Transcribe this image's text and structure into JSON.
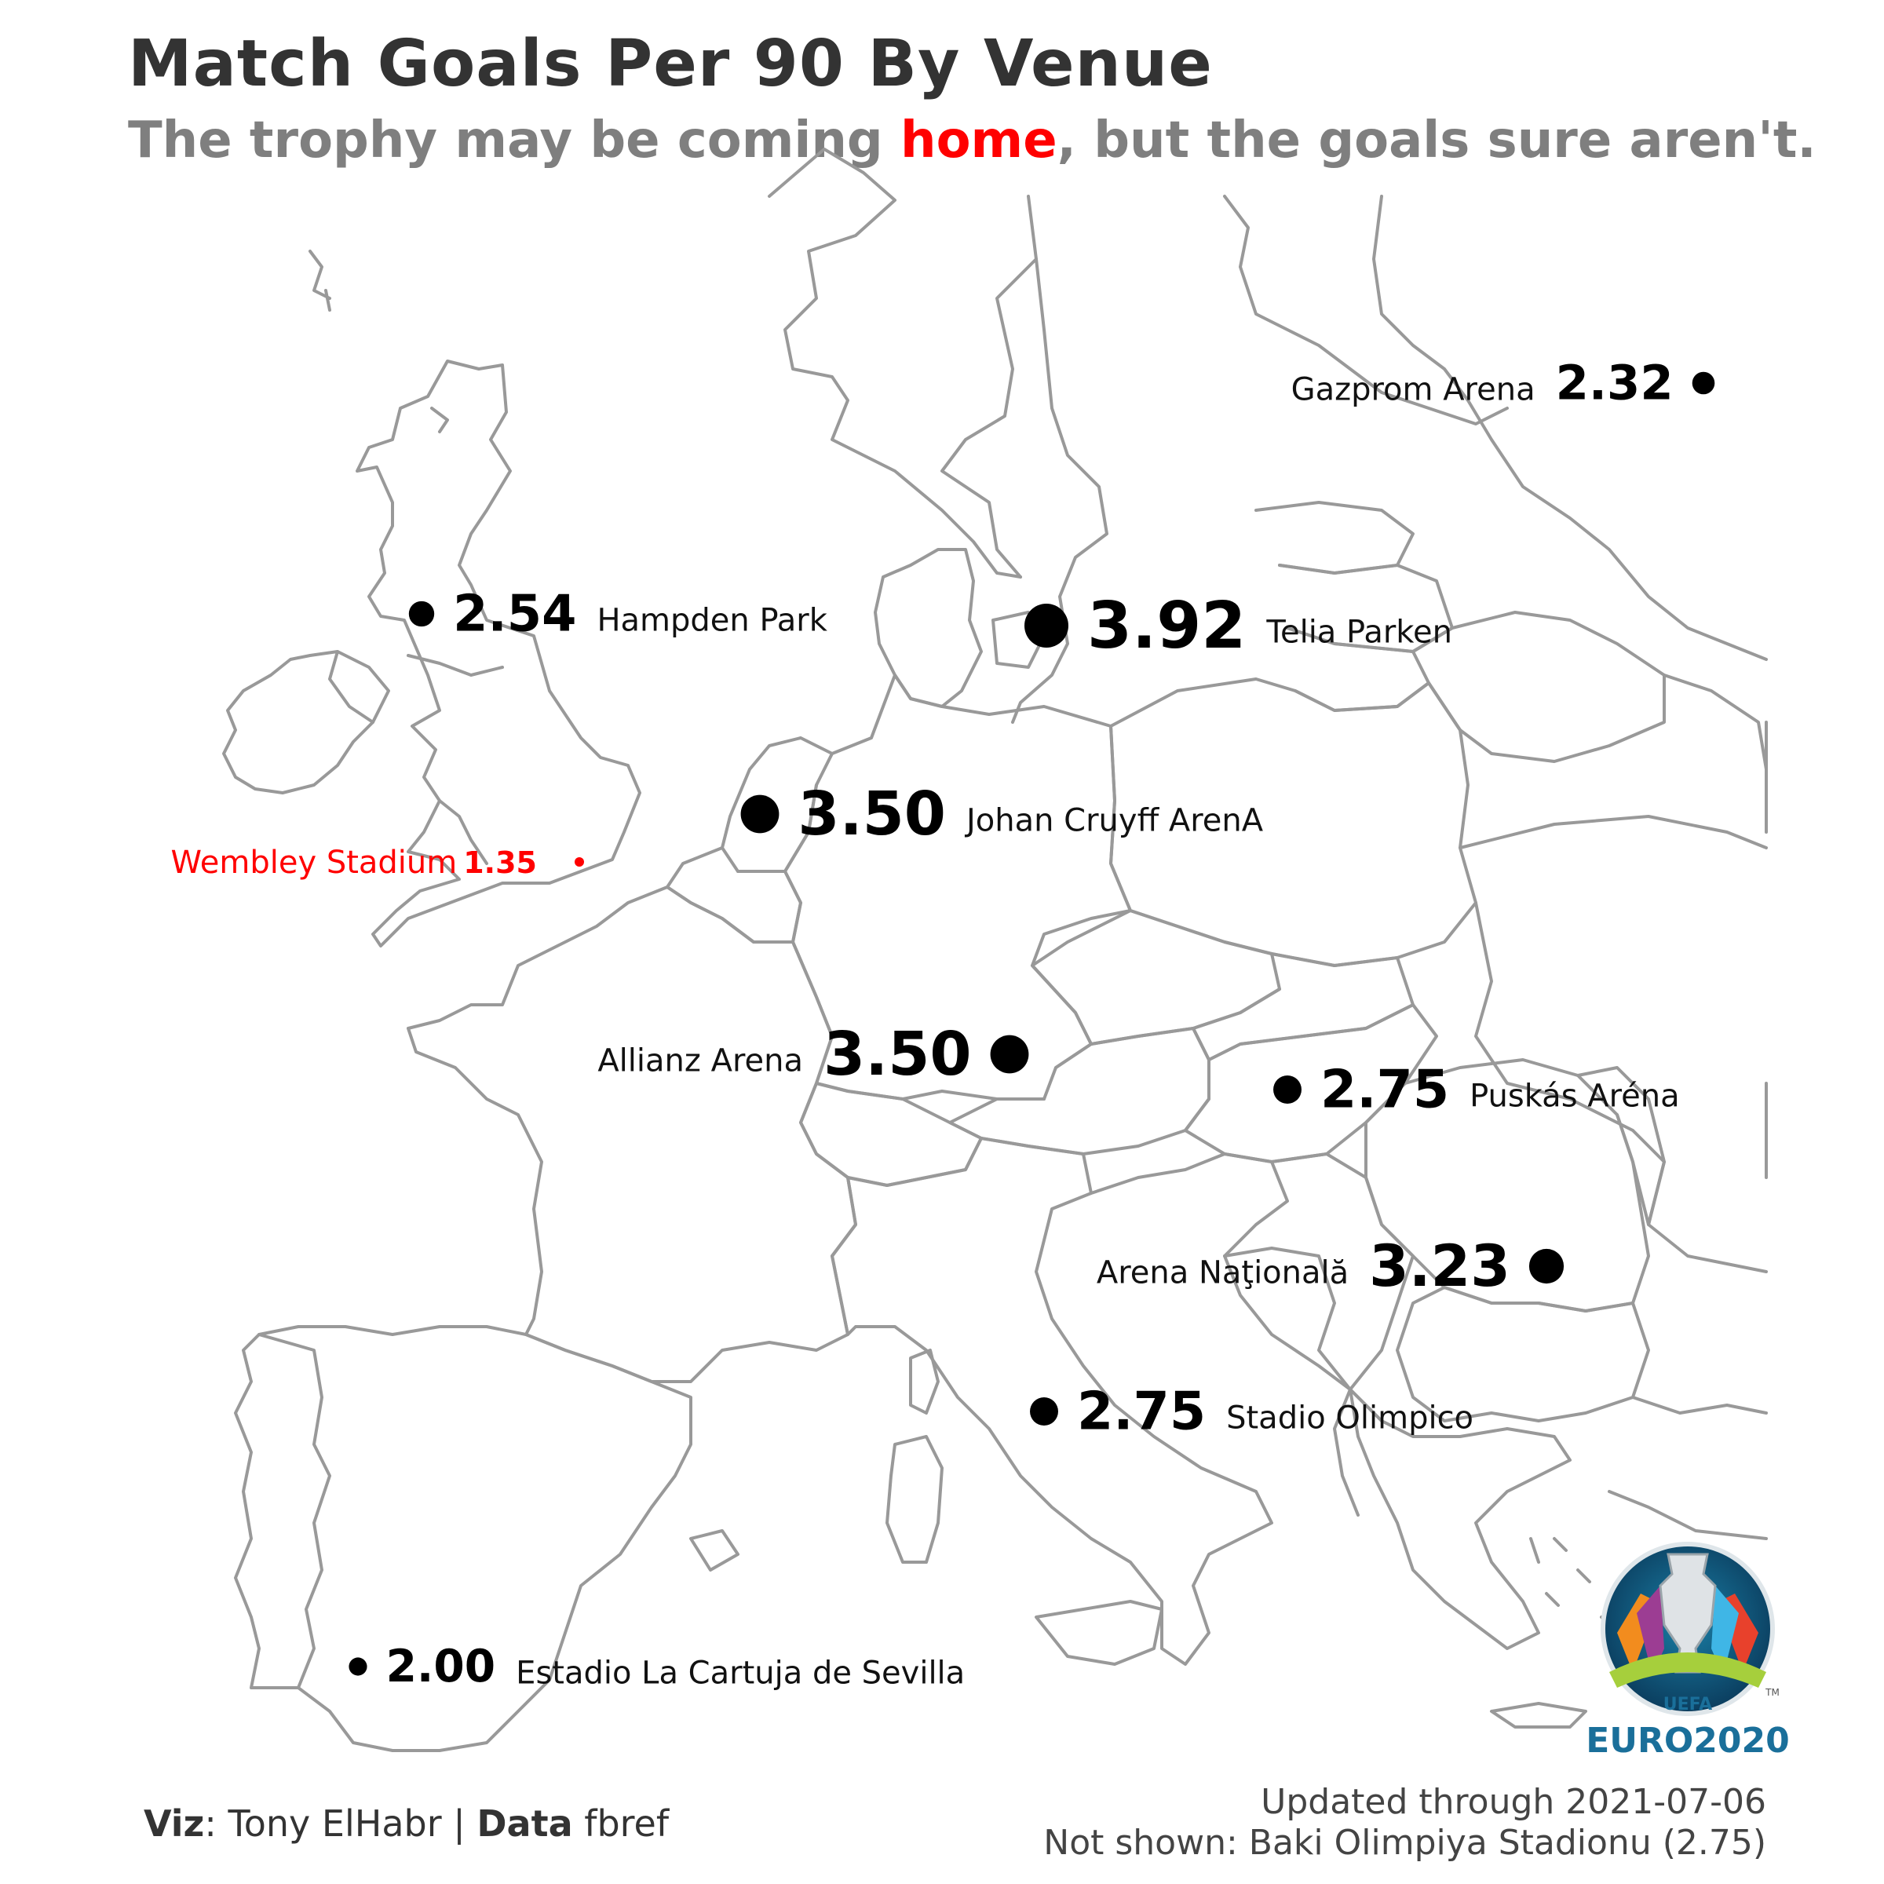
{
  "title": "Match Goals Per 90 By Venue",
  "subtitle": {
    "before": "The trophy may be coming ",
    "highlight": "home",
    "after": ", but the goals sure aren't."
  },
  "colors": {
    "highlight": "#ff0000",
    "title": "#333333",
    "subtitle": "#7f7f7f",
    "borders": "#999999",
    "points": "#000000"
  },
  "venues": [
    {
      "name": "Gazprom Arena",
      "value": "2.32",
      "home": false
    },
    {
      "name": "Hampden Park",
      "value": "2.54",
      "home": false
    },
    {
      "name": "Telia Parken",
      "value": "3.92",
      "home": false
    },
    {
      "name": "Johan Cruyff ArenA",
      "value": "3.50",
      "home": false
    },
    {
      "name": "Wembley Stadium",
      "value": "1.35",
      "home": true
    },
    {
      "name": "Allianz Arena",
      "value": "3.50",
      "home": false
    },
    {
      "name": "Puskás Aréna",
      "value": "2.75",
      "home": false
    },
    {
      "name": "Arena Naţională",
      "value": "3.23",
      "home": false
    },
    {
      "name": "Stadio Olimpico",
      "value": "2.75",
      "home": false
    },
    {
      "name": "Estadio La Cartuja de Sevilla",
      "value": "2.00",
      "home": false
    }
  ],
  "footer": {
    "viz_label": "Viz",
    "viz_value": ": Tony ElHabr | ",
    "data_label": "Data",
    "data_value": " fbref",
    "updated": "Updated through 2021-07-06",
    "not_shown": "Not shown: Baki Olimpiya Stadionu (2.75)"
  },
  "logo": {
    "icon": "euro2020-trophy-logo",
    "line1": "UEFA",
    "line2": "EURO2020",
    "tm": "TM"
  }
}
